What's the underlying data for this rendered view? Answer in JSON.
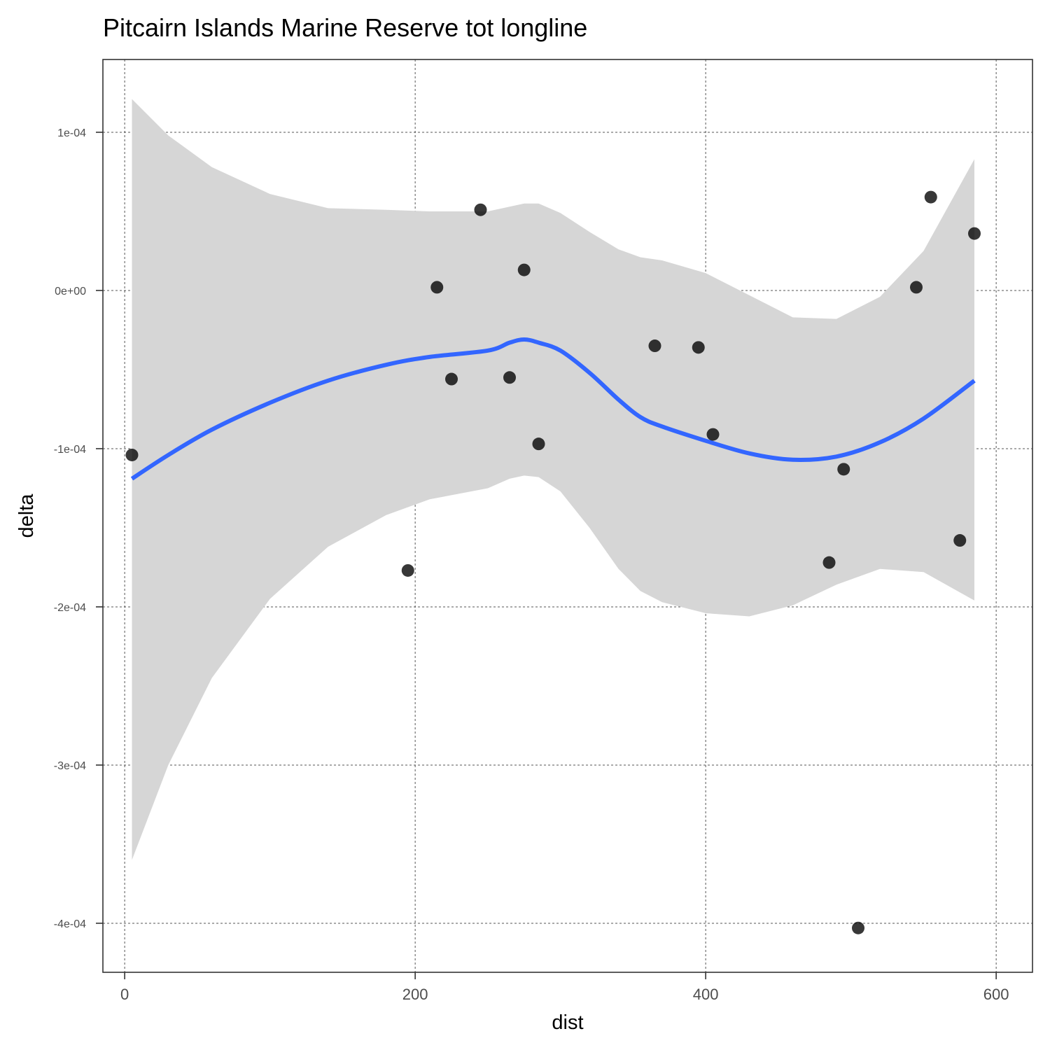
{
  "chart_data": {
    "type": "scatter",
    "title": "Pitcairn Islands Marine Reserve tot longline",
    "xlabel": "dist",
    "ylabel": "delta",
    "xlim": [
      -15,
      625
    ],
    "ylim": [
      -0.000431,
      0.000146
    ],
    "x_ticks": [
      0,
      200,
      400,
      600
    ],
    "x_tick_labels": [
      "0",
      "200",
      "400",
      "600"
    ],
    "y_ticks": [
      0.0001,
      0,
      -0.0001,
      -0.0002,
      -0.0003,
      -0.0004
    ],
    "y_tick_labels": [
      "1e-04",
      "0e+00",
      "-1e-04",
      "-2e-04",
      "-3e-04",
      "-4e-04"
    ],
    "grid": true,
    "points": [
      {
        "x": 5,
        "y": -0.000104
      },
      {
        "x": 195,
        "y": -0.000177
      },
      {
        "x": 215,
        "y": 2e-06
      },
      {
        "x": 225,
        "y": -5.6e-05
      },
      {
        "x": 245,
        "y": 5.1e-05
      },
      {
        "x": 265,
        "y": -5.5e-05
      },
      {
        "x": 275,
        "y": 1.3e-05
      },
      {
        "x": 285,
        "y": -9.7e-05
      },
      {
        "x": 365,
        "y": -3.5e-05
      },
      {
        "x": 395,
        "y": -3.6e-05
      },
      {
        "x": 405,
        "y": -9.1e-05
      },
      {
        "x": 485,
        "y": -0.000172
      },
      {
        "x": 495,
        "y": -0.000113
      },
      {
        "x": 505,
        "y": -0.000403
      },
      {
        "x": 545,
        "y": 2e-06
      },
      {
        "x": 555,
        "y": 5.9e-05
      },
      {
        "x": 575,
        "y": -0.000158
      },
      {
        "x": 585,
        "y": 3.6e-05
      }
    ],
    "smooth": {
      "color": "#3366ff",
      "x": [
        5,
        30,
        60,
        100,
        140,
        180,
        210,
        250,
        265,
        275,
        285,
        300,
        320,
        340,
        355,
        370,
        400,
        430,
        460,
        490,
        520,
        550,
        585
      ],
      "y": [
        -0.000119,
        -0.000104,
        -8.8e-05,
        -7.1e-05,
        -5.7e-05,
        -4.7e-05,
        -4.2e-05,
        -3.8e-05,
        -3.3e-05,
        -3.1e-05,
        -3.3e-05,
        -3.8e-05,
        -5.2e-05,
        -6.9e-05,
        -8e-05,
        -8.6e-05,
        -9.5e-05,
        -0.000103,
        -0.000107,
        -0.000105,
        -9.6e-05,
        -8.1e-05,
        -5.7e-05
      ],
      "ymin": [
        -0.00036,
        -0.0003,
        -0.000245,
        -0.000195,
        -0.000162,
        -0.000142,
        -0.000132,
        -0.000125,
        -0.000119,
        -0.000117,
        -0.000118,
        -0.000127,
        -0.00015,
        -0.000176,
        -0.00019,
        -0.000197,
        -0.000204,
        -0.000206,
        -0.000199,
        -0.000186,
        -0.000176,
        -0.000178,
        -0.000196
      ],
      "ymax": [
        0.000121,
        9.8e-05,
        7.8e-05,
        6.1e-05,
        5.2e-05,
        5.1e-05,
        5e-05,
        5e-05,
        5.3e-05,
        5.5e-05,
        5.5e-05,
        4.9e-05,
        3.7e-05,
        2.6e-05,
        2.1e-05,
        1.9e-05,
        1.1e-05,
        -3e-06,
        -1.7e-05,
        -1.8e-05,
        -4e-06,
        2.5e-05,
        8.3e-05
      ],
      "band_color": "#d6d6d6"
    },
    "point_color": "#000000"
  }
}
